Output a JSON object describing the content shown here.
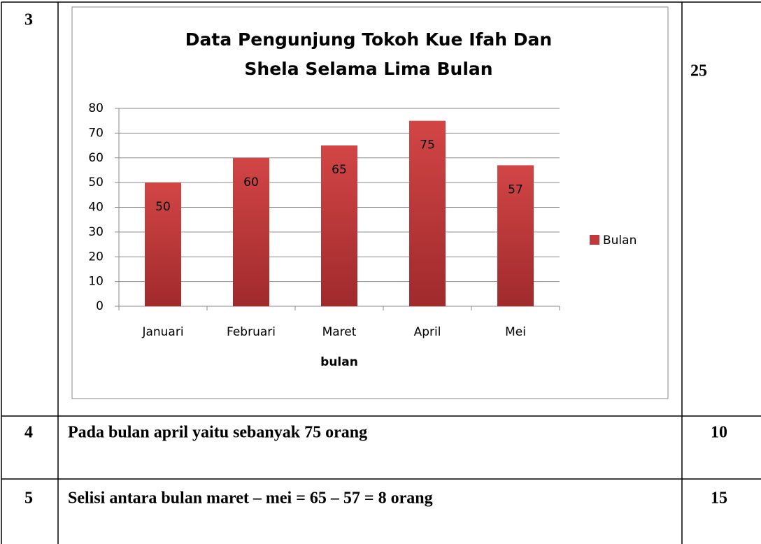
{
  "table": {
    "rows": [
      {
        "number": "3",
        "score": "25"
      },
      {
        "number": "4",
        "content": "Pada bulan april yaitu sebanyak 75 orang",
        "score": "10"
      },
      {
        "number": "5",
        "content": "Selisi antara bulan maret – mei = 65 – 57 = 8 orang",
        "score": "15"
      }
    ]
  },
  "chart_data": {
    "type": "bar",
    "title": [
      "Data Pengunjung Tokoh  Kue Ifah Dan",
      "Shela Selama Lima Bulan"
    ],
    "x_label": "bulan",
    "categories": [
      "Januari",
      "Februari",
      "Maret",
      "April",
      "Mei"
    ],
    "series": [
      {
        "name": "Bulan",
        "color": "#c0393b",
        "values": [
          50,
          60,
          65,
          75,
          57
        ]
      }
    ],
    "ylim": [
      0,
      80
    ],
    "yticks": [
      0,
      10,
      20,
      30,
      40,
      50,
      60,
      70,
      80
    ],
    "grid": true,
    "legend": "right",
    "data_labels": true
  }
}
